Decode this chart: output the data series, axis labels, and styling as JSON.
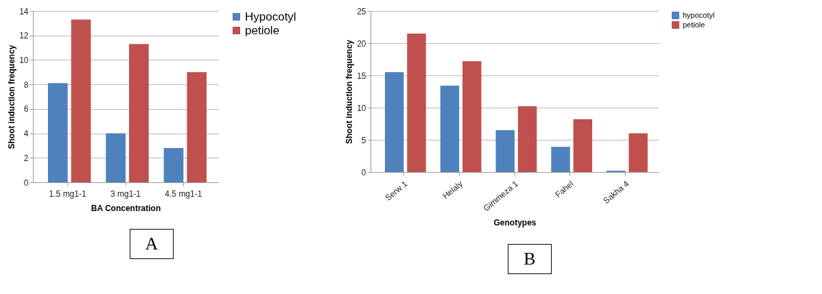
{
  "chart_data": [
    {
      "type": "bar",
      "categories": [
        "1.5 mg1-1",
        "3 mg1-1",
        "4.5 mg1-1"
      ],
      "xlabel": "BA Concentration",
      "ylabel": "Shoot induction frequency",
      "ylim": [
        0,
        14
      ],
      "yticks": [
        0,
        2,
        4,
        6,
        8,
        10,
        12,
        14
      ],
      "grid": "y",
      "legend": "right",
      "annotations": [
        "A"
      ],
      "series": [
        {
          "name": "Hypocotyl",
          "color": "#4f81bd",
          "values": [
            8.1,
            4.0,
            2.8
          ]
        },
        {
          "name": "petiole",
          "color": "#c0504d",
          "values": [
            13.3,
            11.3,
            9.0
          ]
        }
      ]
    },
    {
      "type": "bar",
      "categories": [
        "Serw 1",
        "Helaly",
        "Gimmeza 1",
        "Fahel",
        "Sakha 4"
      ],
      "xlabel": "Genotypes",
      "ylabel": "Shoot induction frequency",
      "ylim": [
        0,
        25
      ],
      "yticks": [
        0,
        5,
        10,
        15,
        20,
        25
      ],
      "grid": "y",
      "legend": "right",
      "annotations": [
        "B"
      ],
      "series": [
        {
          "name": "hypocotyl",
          "color": "#4f81bd",
          "values": [
            15.5,
            13.4,
            6.5,
            3.9,
            0.2
          ]
        },
        {
          "name": "petiole",
          "color": "#c0504d",
          "values": [
            21.5,
            17.2,
            10.2,
            8.2,
            6.0
          ]
        }
      ]
    }
  ]
}
